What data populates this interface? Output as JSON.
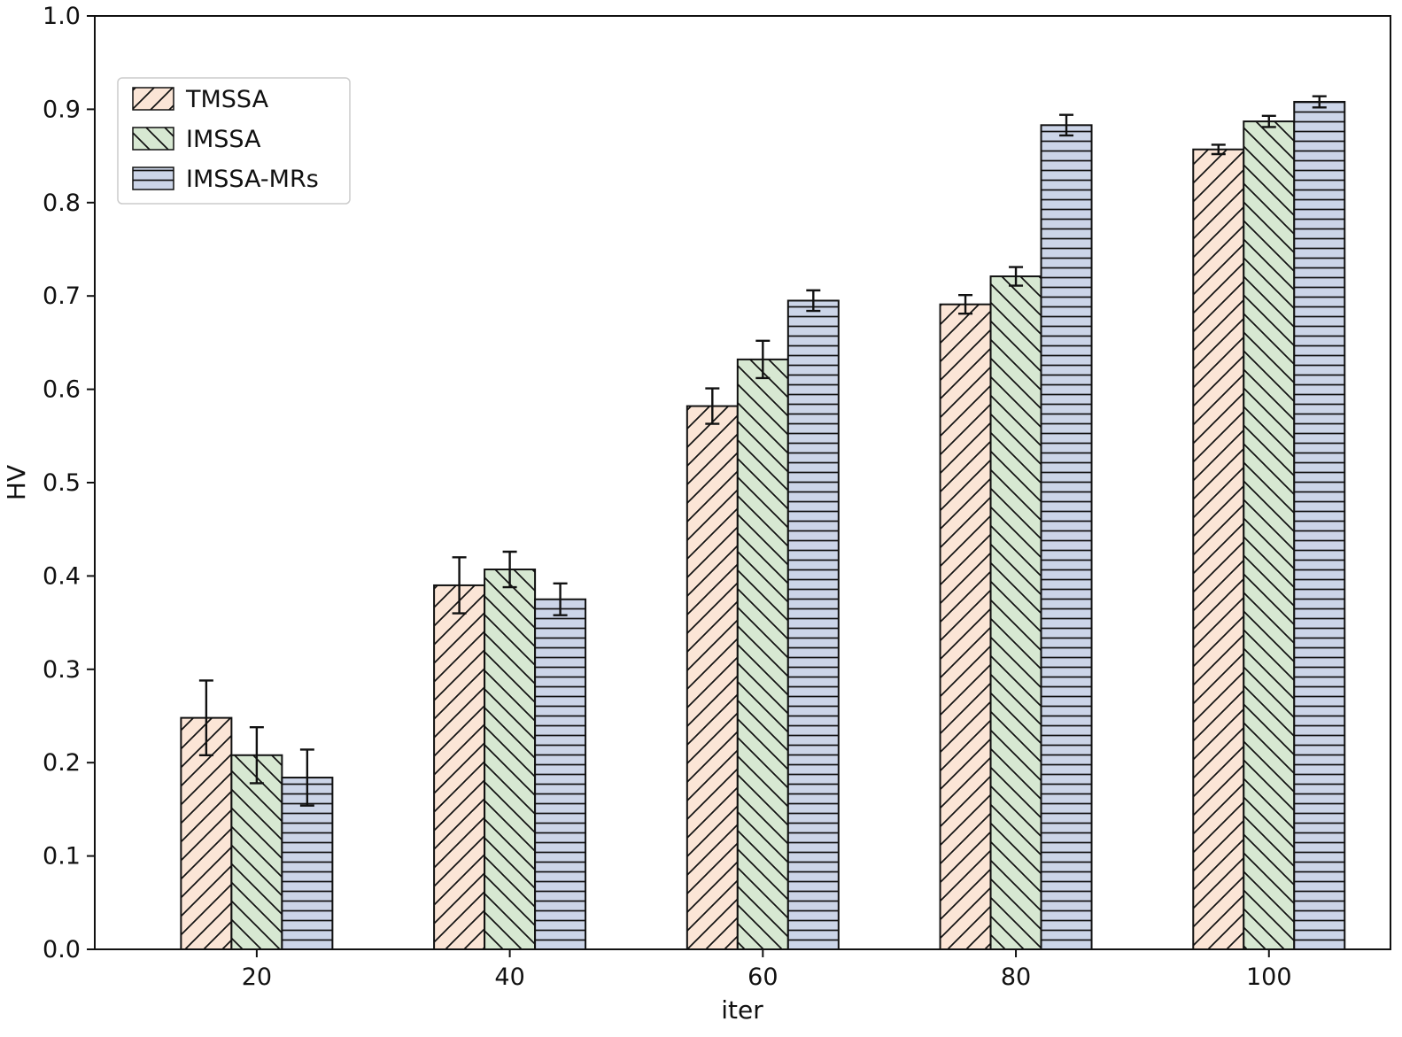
{
  "chart_data": {
    "type": "bar",
    "title": "",
    "xlabel": "iter",
    "ylabel": "HV",
    "categories": [
      "20",
      "40",
      "60",
      "80",
      "100"
    ],
    "ylim": [
      0.0,
      1.0
    ],
    "ytick_step": 0.1,
    "grid": false,
    "legend_position": "upper-left",
    "edge_color": "#111111",
    "series": [
      {
        "name": "TMSSA",
        "color": "#fbe5d6",
        "hatch": "/",
        "values": [
          0.248,
          0.39,
          0.582,
          0.691,
          0.857
        ],
        "errors": [
          0.04,
          0.03,
          0.019,
          0.01,
          0.005
        ]
      },
      {
        "name": "IMSSA",
        "color": "#d7e8d2",
        "hatch": "\\",
        "values": [
          0.208,
          0.407,
          0.632,
          0.721,
          0.887
        ],
        "errors": [
          0.03,
          0.019,
          0.02,
          0.01,
          0.006
        ]
      },
      {
        "name": "IMSSA-MRs",
        "color": "#ccd5e8",
        "hatch": "-",
        "values": [
          0.184,
          0.375,
          0.695,
          0.883,
          0.908
        ],
        "errors": [
          0.03,
          0.017,
          0.011,
          0.011,
          0.006
        ]
      }
    ]
  }
}
